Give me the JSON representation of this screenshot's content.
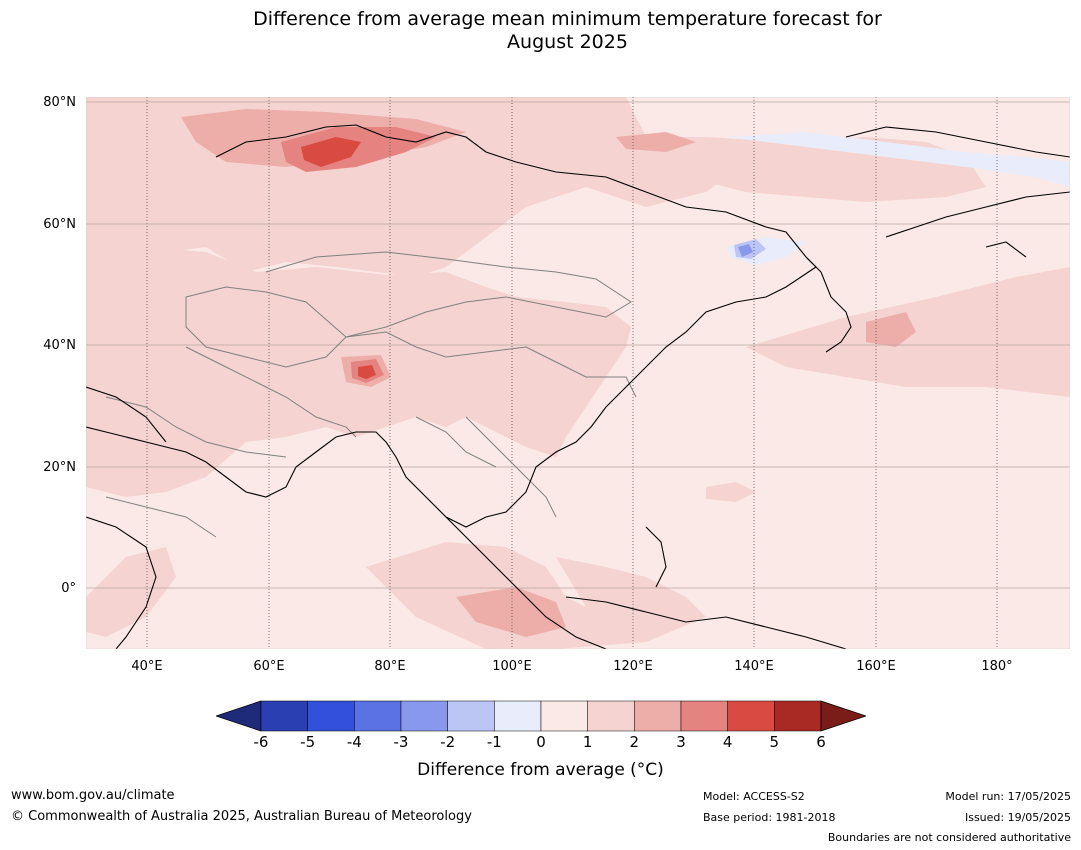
{
  "title_line1": "Difference from average mean minimum temperature forecast for",
  "title_line2": "August 2025",
  "axes": {
    "lat_ticks": [
      "80°N",
      "60°N",
      "40°N",
      "20°N",
      "0°"
    ],
    "lon_ticks": [
      "40°E",
      "60°E",
      "80°E",
      "100°E",
      "120°E",
      "140°E",
      "160°E",
      "180°"
    ]
  },
  "colorbar": {
    "ticks": [
      "-6",
      "-5",
      "-4",
      "-3",
      "-2",
      "-1",
      "0",
      "1",
      "2",
      "3",
      "4",
      "5",
      "6"
    ],
    "colors": [
      "#1d2b7a",
      "#2a3fb2",
      "#3350dc",
      "#5b72e4",
      "#8898ec",
      "#bcc6f5",
      "#e8ecfb",
      "#fbe9e7",
      "#f5d3d0",
      "#edaeaa",
      "#e58380",
      "#d94a43",
      "#a92a24",
      "#7a1c18"
    ],
    "label": "Difference from average (°C)"
  },
  "footer": {
    "website": "www.bom.gov.au/climate",
    "copyright": "© Commonwealth of Australia 2025, Australian Bureau of Meteorology",
    "model": "Model: ACCESS-S2",
    "base_period": "Base period: 1981-2018",
    "model_run": "Model run: 17/05/2025",
    "issued": "Issued: 19/05/2025",
    "disclaimer": "Boundaries are not considered authoritative"
  },
  "map_colors": {
    "c0_1": "#fbe9e7",
    "c1_2": "#f5d3d0",
    "c2_3": "#edaeaa",
    "c3_4": "#e58380",
    "c4_5": "#d94a43",
    "cm1_0": "#e8ecfb",
    "cm2_1": "#bcc6f5",
    "cm3_2": "#8898ec",
    "cm4_3": "#5b72e4"
  }
}
